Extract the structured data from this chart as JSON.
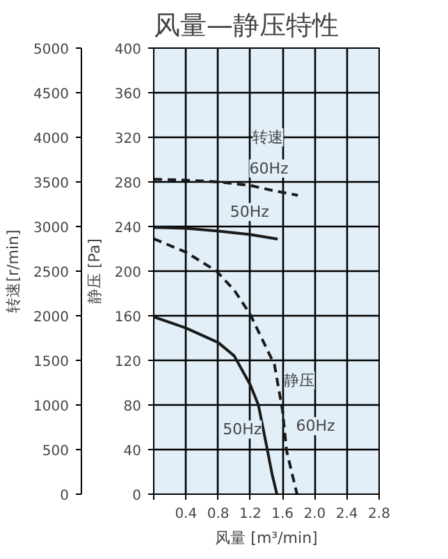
{
  "chart_data": {
    "type": "line",
    "title": "风量—静压特性",
    "xlabel": "风量 [m³/min]",
    "ylabel": "静压 [Pa]",
    "y2label": "转速[r/min]",
    "xlim": [
      0,
      2.8
    ],
    "xticks": [
      {
        "value": 0,
        "label": null
      },
      0.4,
      0.8,
      1.2,
      1.6,
      {
        "value": 2,
        "label": "2.0"
      },
      2.4,
      2.8
    ],
    "ylim": [
      0,
      400
    ],
    "yticks": [
      0,
      40,
      80,
      120,
      160,
      200,
      240,
      280,
      320,
      360,
      400
    ],
    "y2lim": [
      0,
      5000
    ],
    "y2ticks": [
      0,
      500,
      1000,
      1500,
      2000,
      2500,
      3000,
      3500,
      4000,
      4500,
      5000
    ],
    "grid": true,
    "series": [
      {
        "color": "#1a1a1a",
        "axis": "y2",
        "line_style": "dashed",
        "x": [
          0,
          0.4,
          0.8,
          1.2,
          1.5,
          1.79
        ],
        "values": [
          3530,
          3520,
          3500,
          3460,
          3400,
          3350
        ]
      },
      {
        "color": "#1a1a1a",
        "axis": "y2",
        "line_style": "solid",
        "x": [
          0,
          0.4,
          0.8,
          1.2,
          1.54
        ],
        "values": [
          2990,
          2980,
          2950,
          2910,
          2860
        ]
      },
      {
        "color": "#1a1a1a",
        "line_style": "dashed",
        "x": [
          0,
          0.4,
          0.78,
          1.0,
          1.2,
          1.4,
          1.5,
          1.6,
          1.65,
          1.72,
          1.78
        ],
        "values": [
          229,
          217,
          200,
          183,
          161,
          131,
          116,
          75,
          39,
          18,
          0
        ]
      },
      {
        "color": "#1a1a1a",
        "line_style": "solid",
        "x": [
          0,
          0.4,
          0.8,
          1.0,
          1.2,
          1.3,
          1.4,
          1.47,
          1.53
        ],
        "values": [
          159,
          149,
          136,
          124,
          98,
          80,
          44,
          18,
          0
        ]
      }
    ],
    "annotations": [
      {
        "text": "转速",
        "x": 1.42,
        "y": 320
      },
      {
        "text": "60Hz",
        "x": 1.43,
        "y": 292
      },
      {
        "text": "50Hz",
        "x": 1.19,
        "y": 253
      },
      {
        "text": "静压",
        "x": 1.81,
        "y": 102
      },
      {
        "text": "50Hz",
        "x": 1.1,
        "y": 58
      },
      {
        "text": "60Hz",
        "x": 2.01,
        "y": 61
      }
    ]
  }
}
